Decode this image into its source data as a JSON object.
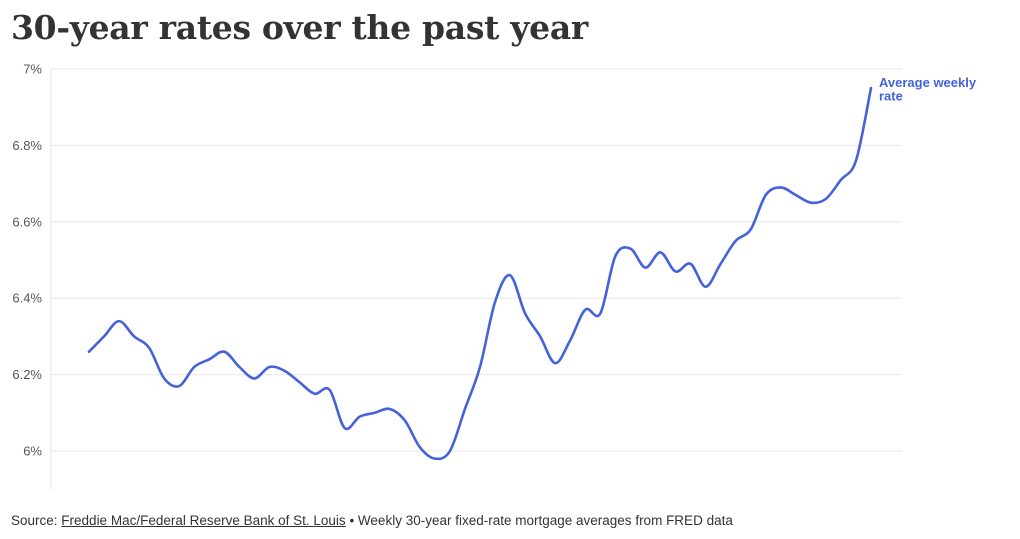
{
  "chart_data": {
    "type": "line",
    "title": "30-year rates over the past year",
    "xlabel": "",
    "ylabel": "",
    "ylim": [
      5.9,
      7
    ],
    "yticks": [
      6,
      6.2,
      6.4,
      6.6,
      6.8,
      7
    ],
    "ytick_labels": [
      "6%",
      "6.2%",
      "6.4%",
      "6.6%",
      "6.8%",
      "7%"
    ],
    "grid": "horizontal",
    "legend": "none",
    "series": [
      {
        "name": "Average weekly rate",
        "color": "#4562d9",
        "x": [
          1,
          2,
          3,
          4,
          5,
          6,
          7,
          8,
          9,
          10,
          11,
          12,
          13,
          14,
          15,
          16,
          17,
          18,
          19,
          20,
          21,
          22,
          23,
          24,
          25,
          26,
          27,
          28,
          29,
          30,
          31,
          32,
          33,
          34,
          35,
          36,
          37,
          38,
          39,
          40,
          41,
          42,
          43,
          44,
          45,
          46,
          47,
          48,
          49,
          50,
          51,
          52,
          53
        ],
        "values": [
          6.26,
          6.3,
          6.34,
          6.3,
          6.27,
          6.19,
          6.17,
          6.22,
          6.24,
          6.26,
          6.22,
          6.19,
          6.22,
          6.21,
          6.18,
          6.15,
          6.16,
          6.06,
          6.09,
          6.1,
          6.11,
          6.08,
          6.01,
          5.98,
          6.0,
          6.11,
          6.22,
          6.39,
          6.46,
          6.36,
          6.3,
          6.23,
          6.29,
          6.37,
          6.36,
          6.51,
          6.53,
          6.48,
          6.52,
          6.47,
          6.49,
          6.43,
          6.49,
          6.55,
          6.58,
          6.67,
          6.69,
          6.67,
          6.65,
          6.66,
          6.71,
          6.76,
          6.95
        ]
      }
    ]
  },
  "source": {
    "prefix": "Source:",
    "link_text": "Freddie Mac/Federal Reserve Bank of St. Louis",
    "suffix": "• Weekly 30-year fixed-rate mortgage averages from FRED data"
  }
}
